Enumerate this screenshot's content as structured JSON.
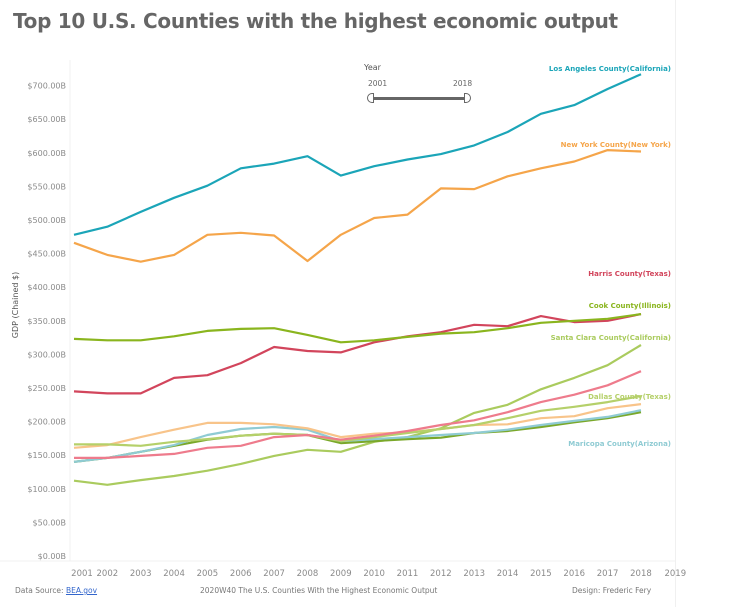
{
  "title": "Top 10 U.S. Counties with the highest economic output",
  "filter": {
    "label": "Year",
    "min_label": "2001",
    "max_label": "2018",
    "min": 2001,
    "max": 2018
  },
  "footer": {
    "source_prefix": "Data Source: ",
    "source_link": "BEA.gov",
    "caption": "2020W40 The U.S. Counties With the Highest Economic Output",
    "credit": "Design: Frederic Fery"
  },
  "chart_data": {
    "type": "line",
    "title": "Top 10 U.S. Counties with the highest economic output",
    "xlabel": "",
    "ylabel": "GDP (Chained $)",
    "ylim": [
      0,
      700
    ],
    "xlim": [
      2001,
      2019
    ],
    "grid": false,
    "y_ticks": [
      "$0.00B",
      "$50.00B",
      "$100.00B",
      "$150.00B",
      "$200.00B",
      "$250.00B",
      "$300.00B",
      "$350.00B",
      "$400.00B",
      "$450.00B",
      "$500.00B",
      "$550.00B",
      "$600.00B",
      "$650.00B",
      "$700.00B"
    ],
    "y_tick_values": [
      0,
      50,
      100,
      150,
      200,
      250,
      300,
      350,
      400,
      450,
      500,
      550,
      600,
      650,
      700
    ],
    "x_ticks": [
      "2001",
      "2002",
      "2003",
      "2004",
      "2005",
      "2006",
      "2007",
      "2008",
      "2009",
      "2010",
      "2011",
      "2012",
      "2013",
      "2014",
      "2015",
      "2016",
      "2017",
      "2018",
      "2019"
    ],
    "x": [
      2001,
      2002,
      2003,
      2004,
      2005,
      2006,
      2007,
      2008,
      2009,
      2010,
      2011,
      2012,
      2013,
      2014,
      2015,
      2016,
      2017,
      2018
    ],
    "unit": "Billions USD (chained)",
    "series": [
      {
        "id": "santa-clara",
        "name": "Santa Clara County(California)",
        "color": "#aacb5e",
        "values": [
          112,
          106,
          113,
          119,
          127,
          137,
          149,
          158,
          155,
          170,
          177,
          190,
          213,
          225,
          248,
          265,
          284,
          314
        ]
      },
      {
        "id": "unlabeled-olive",
        "name": "",
        "color": "#7aa82a",
        "values": [
          140,
          146,
          155,
          164,
          173,
          179,
          182,
          180,
          168,
          171,
          174,
          176,
          183,
          186,
          192,
          199,
          205,
          214
        ]
      },
      {
        "id": "maricopa",
        "name": "Maricopa County(Arizona)",
        "color": "#8fcbd3",
        "values": [
          140,
          146,
          155,
          165,
          180,
          189,
          192,
          188,
          171,
          174,
          177,
          180,
          183,
          188,
          195,
          201,
          207,
          217
        ]
      },
      {
        "id": "unlabeled-light-orange",
        "name": "",
        "color": "#f8c48a",
        "values": [
          161,
          165,
          177,
          188,
          198,
          198,
          196,
          190,
          177,
          182,
          184,
          189,
          195,
          196,
          205,
          208,
          220,
          226
        ]
      },
      {
        "id": "dallas",
        "name": "Dallas County(Texas)",
        "color": "#b5d06a",
        "values": [
          166,
          166,
          164,
          170,
          174,
          179,
          182,
          180,
          171,
          177,
          183,
          189,
          195,
          205,
          216,
          222,
          229,
          238
        ]
      },
      {
        "id": "unlabeled-pink",
        "name": "",
        "color": "#ee7b8c",
        "values": [
          146,
          146,
          149,
          152,
          161,
          164,
          177,
          180,
          173,
          179,
          186,
          195,
          202,
          214,
          229,
          240,
          254,
          275
        ]
      },
      {
        "id": "harris",
        "name": "Harris County(Texas)",
        "color": "#d2455c",
        "values": [
          245,
          242,
          242,
          265,
          269,
          287,
          311,
          305,
          303,
          318,
          327,
          333,
          344,
          342,
          357,
          348,
          350,
          360
        ]
      },
      {
        "id": "cook",
        "name": "Cook County(Illinois)",
        "color": "#8ab51e",
        "values": [
          323,
          321,
          321,
          327,
          335,
          338,
          339,
          329,
          318,
          321,
          326,
          331,
          333,
          339,
          347,
          350,
          353,
          360
        ]
      },
      {
        "id": "new-york",
        "name": "New York County(New York)",
        "color": "#f5a54a",
        "values": [
          466,
          448,
          438,
          448,
          478,
          481,
          477,
          439,
          478,
          503,
          508,
          547,
          546,
          565,
          577,
          587,
          604,
          602
        ]
      },
      {
        "id": "los-angeles",
        "name": "Los Angeles County(California)",
        "color": "#1ba5b8",
        "values": [
          478,
          490,
          512,
          533,
          551,
          577,
          584,
          595,
          566,
          580,
          590,
          598,
          611,
          631,
          658,
          671,
          695,
          717
        ]
      }
    ]
  }
}
